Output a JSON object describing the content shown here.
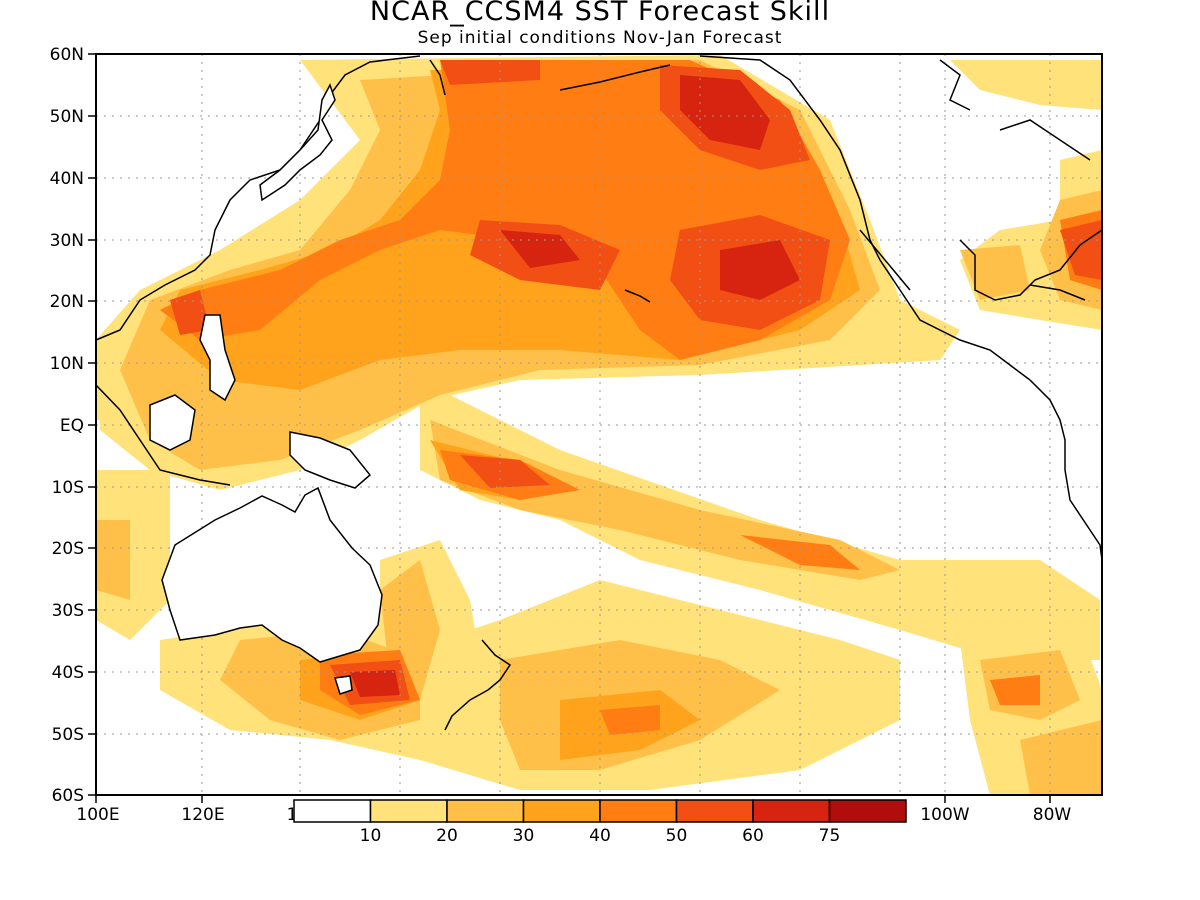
{
  "title": "NCAR_CCSM4 SST Forecast Skill",
  "subtitle": "Sep initial conditions  Nov-Jan Forecast",
  "lat_labels": [
    "60N",
    "50N",
    "40N",
    "30N",
    "20N",
    "10N",
    "EQ",
    "10S",
    "20S",
    "30S",
    "40S",
    "50S",
    "60S"
  ],
  "lon_labels": [
    "100E",
    "120E",
    "1",
    "100W",
    "80W"
  ],
  "legend": {
    "labels": [
      "10",
      "20",
      "30",
      "40",
      "50",
      "60",
      "75"
    ],
    "colors": [
      "#ffffff",
      "#ffe27a",
      "#ffc04a",
      "#ffa31c",
      "#ff7d12",
      "#f24f14",
      "#d72410",
      "#b00d0d"
    ]
  },
  "map": {
    "lon_range": [
      "100E",
      "70W"
    ],
    "lat_range": [
      "60S",
      "60N"
    ],
    "grid": "dotted every 10 degrees",
    "ocean_color": "#ffffff",
    "coastline_color": "#000000"
  }
}
